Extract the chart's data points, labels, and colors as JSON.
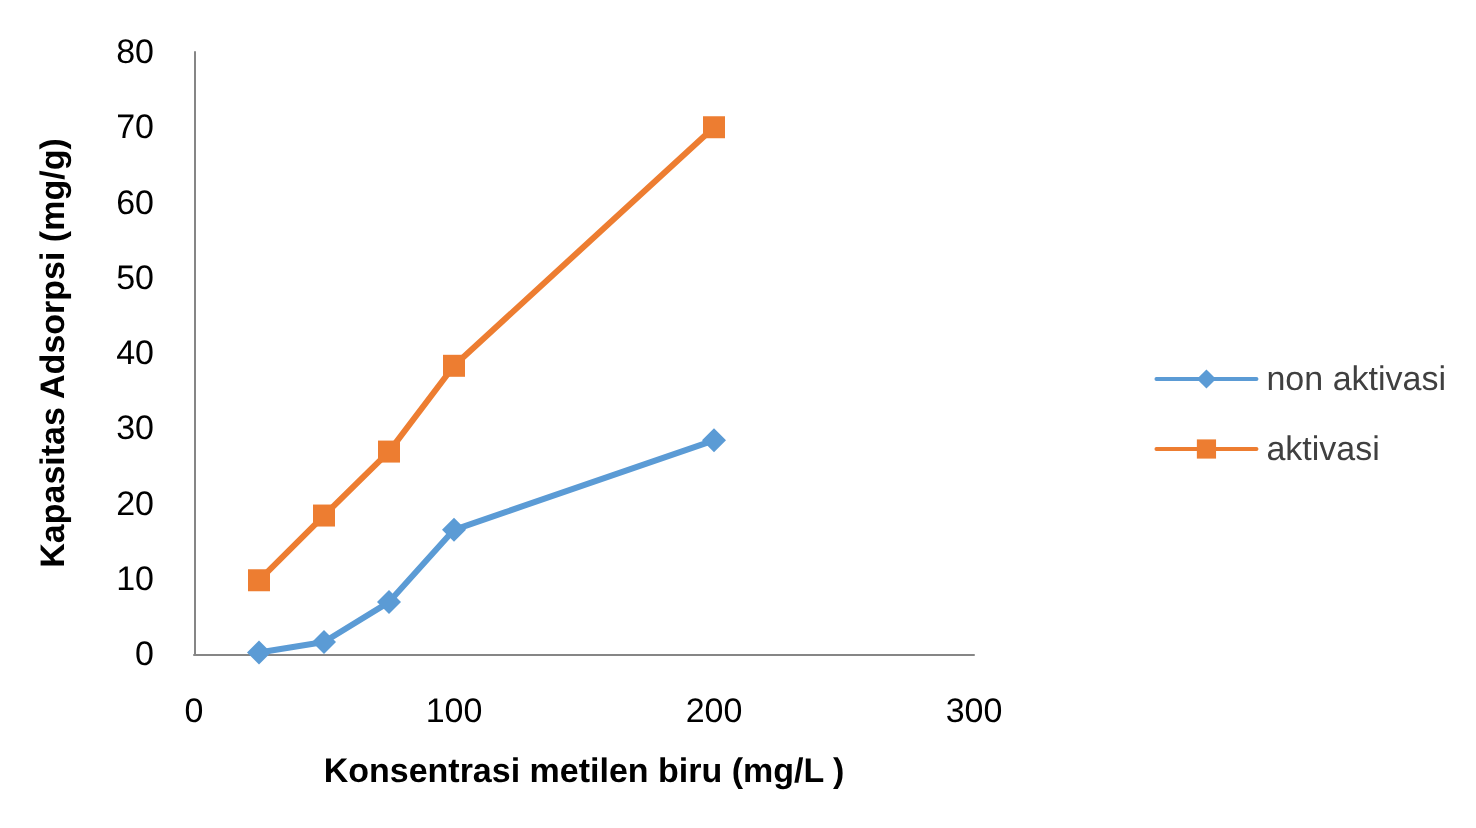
{
  "chart_data": {
    "type": "line",
    "xlabel": "Konsentrasi metilen biru (mg/L )",
    "ylabel": "Kapasitas Adsorpsi (mg/g)",
    "x": [
      25,
      50,
      75,
      100,
      200
    ],
    "series": [
      {
        "name": "non aktivasi",
        "color": "#5b9bd5",
        "marker": "diamond",
        "values": [
          0.2,
          1.6,
          6.9,
          16.5,
          28.4
        ]
      },
      {
        "name": "aktivasi",
        "color": "#ed7d31",
        "marker": "square",
        "values": [
          9.8,
          18.4,
          26.9,
          38.3,
          70
        ]
      }
    ],
    "xlim": [
      0,
      300
    ],
    "xticks": [
      0,
      100,
      200,
      300
    ],
    "ylim": [
      0,
      80
    ],
    "yticks": [
      0,
      10,
      20,
      30,
      40,
      50,
      60,
      70,
      80
    ],
    "grid": false,
    "legend": "right",
    "line_style": "solid"
  }
}
